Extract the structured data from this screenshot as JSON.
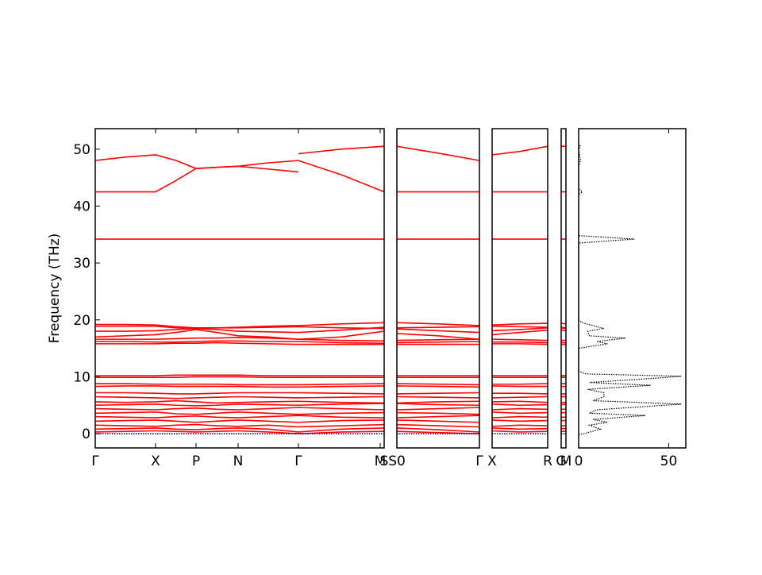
{
  "chart_data": [
    {
      "type": "line",
      "ylabel": "Frequency (THz)",
      "color": "#ff0000",
      "ylim": [
        -2.5,
        53.6
      ],
      "yticks": [
        0,
        10,
        20,
        30,
        40,
        50
      ],
      "xlim": [
        0,
        3.64
      ],
      "xticks": [
        {
          "value": 0,
          "label": "Γ"
        },
        {
          "value": 0.76,
          "label": "X"
        },
        {
          "value": 1.27,
          "label": "P"
        },
        {
          "value": 1.8,
          "label": "N"
        },
        {
          "value": 2.56,
          "label": "Γ"
        },
        {
          "value": 3.59,
          "label": "M"
        },
        {
          "value": 3.64,
          "label": "S"
        }
      ],
      "x": [
        0,
        0.38,
        0.76,
        1.02,
        1.27,
        1.53,
        1.8,
        2.18,
        2.56,
        3.1,
        3.64
      ],
      "series": [
        {
          "values": [
            48,
            48.6,
            49,
            48,
            46.6,
            46.8,
            47,
            47.6,
            48,
            45.5,
            42.5
          ]
        },
        {
          "values": [
            42.5,
            42.5,
            42.5,
            44.5,
            46.6,
            46.8,
            47,
            46.5,
            46,
            null,
            null
          ]
        },
        {
          "values": [
            null,
            null,
            null,
            null,
            null,
            null,
            null,
            null,
            49.2,
            50,
            50.5
          ]
        },
        {
          "values": [
            34.2,
            34.2,
            34.2,
            34.2,
            34.2,
            34.2,
            34.2,
            34.2,
            34.2,
            34.2,
            34.2
          ]
        },
        {
          "values": [
            19.2,
            19.2,
            19.1,
            18.8,
            18.6,
            18.6,
            18.7,
            18.9,
            19.0,
            19.3,
            19.5
          ]
        },
        {
          "values": [
            18.9,
            18.9,
            18.9,
            18.6,
            18.5,
            18.6,
            18.6,
            18.7,
            18.8,
            18.6,
            18.5
          ]
        },
        {
          "values": [
            18.0,
            18.0,
            18.1,
            18.3,
            18.5,
            18.3,
            18.0,
            17.9,
            17.8,
            18.2,
            18.7
          ]
        },
        {
          "values": [
            17.0,
            17.2,
            17.4,
            17.8,
            18.3,
            17.8,
            17.2,
            17.0,
            16.6,
            17.0,
            18.0
          ]
        },
        {
          "values": [
            16.6,
            16.6,
            16.6,
            16.7,
            16.8,
            16.8,
            16.9,
            16.8,
            16.6,
            16.4,
            16.3
          ]
        },
        {
          "values": [
            16.2,
            16.2,
            16.1,
            16.1,
            16.2,
            16.3,
            16.3,
            16.2,
            16.2,
            16.0,
            15.9
          ]
        },
        {
          "values": [
            15.8,
            15.8,
            15.8,
            15.9,
            15.9,
            16.0,
            15.9,
            15.8,
            15.7,
            15.7,
            15.7
          ]
        },
        {
          "values": [
            10.2,
            10.2,
            10.2,
            10.3,
            10.3,
            10.3,
            10.3,
            10.2,
            10.2,
            10.2,
            10.2
          ]
        },
        {
          "values": [
            9.9,
            9.9,
            9.9,
            9.9,
            10.0,
            10.0,
            10.0,
            9.9,
            9.9,
            9.9,
            9.9
          ]
        },
        {
          "values": [
            8.8,
            8.8,
            8.7,
            8.7,
            8.7,
            8.7,
            8.6,
            8.6,
            8.6,
            8.7,
            8.8
          ]
        },
        {
          "values": [
            8.3,
            8.4,
            8.4,
            8.3,
            8.3,
            8.3,
            8.3,
            8.2,
            8.2,
            8.3,
            8.4
          ]
        },
        {
          "values": [
            7.2,
            7.2,
            7.1,
            7.0,
            7.0,
            7.1,
            7.2,
            7.2,
            7.2,
            7.1,
            7.0
          ]
        },
        {
          "values": [
            6.5,
            6.4,
            6.3,
            6.2,
            6.3,
            6.4,
            6.5,
            6.4,
            6.3,
            6.4,
            6.5
          ]
        },
        {
          "values": [
            5.6,
            5.5,
            5.6,
            5.8,
            5.6,
            5.4,
            5.5,
            5.6,
            5.7,
            5.5,
            5.4
          ]
        },
        {
          "values": [
            5.0,
            5.1,
            5.2,
            5.0,
            4.9,
            5.0,
            5.2,
            5.1,
            5.0,
            5.2,
            5.3
          ]
        },
        {
          "values": [
            4.4,
            4.3,
            4.2,
            4.4,
            4.5,
            4.3,
            4.2,
            4.4,
            4.6,
            4.4,
            4.2
          ]
        },
        {
          "values": [
            3.6,
            3.7,
            3.8,
            3.5,
            3.4,
            3.6,
            3.8,
            3.6,
            3.4,
            3.6,
            3.7
          ]
        },
        {
          "values": [
            3.0,
            2.9,
            2.8,
            3.0,
            3.1,
            2.9,
            2.8,
            3.0,
            3.2,
            2.9,
            2.8
          ]
        },
        {
          "values": [
            2.2,
            2.3,
            2.4,
            2.2,
            2.0,
            2.2,
            2.4,
            2.2,
            2.0,
            2.3,
            2.4
          ]
        },
        {
          "values": [
            1.5,
            1.4,
            1.3,
            1.5,
            1.6,
            1.4,
            1.3,
            1.5,
            1.2,
            1.4,
            1.6
          ]
        },
        {
          "values": [
            0.8,
            0.9,
            1.0,
            0.8,
            0.7,
            0.9,
            1.0,
            0.8,
            0.3,
            0.8,
            1.0
          ]
        },
        {
          "values": [
            0.3,
            0.4,
            0.5,
            0.4,
            0.3,
            0.4,
            0.5,
            0.3,
            0.0,
            0.3,
            0.4
          ]
        },
        {
          "values": [
            0,
            0,
            0,
            0,
            0,
            0,
            0,
            0,
            0,
            0,
            0
          ],
          "color": "#0000cc"
        }
      ]
    },
    {
      "type": "line",
      "color": "#ff0000",
      "ylim": [
        -2.5,
        53.6
      ],
      "xlim": [
        0,
        1.04
      ],
      "xticks": [
        {
          "value": 0,
          "label": "S0"
        },
        {
          "value": 1.04,
          "label": "Γ"
        }
      ],
      "x": [
        0,
        0.52,
        1.04
      ],
      "series": [
        {
          "values": [
            50.5,
            49.3,
            48.0
          ]
        },
        {
          "values": [
            42.5,
            42.5,
            42.5
          ]
        },
        {
          "values": [
            34.2,
            34.2,
            34.2
          ]
        },
        {
          "values": [
            19.5,
            19.3,
            19.0
          ]
        },
        {
          "values": [
            18.6,
            18.7,
            18.8
          ]
        },
        {
          "values": [
            18.4,
            18.1,
            17.8
          ]
        },
        {
          "values": [
            17.6,
            17.2,
            16.6
          ]
        },
        {
          "values": [
            16.4,
            16.5,
            16.6
          ]
        },
        {
          "values": [
            16.0,
            16.1,
            16.2
          ]
        },
        {
          "values": [
            15.7,
            15.7,
            15.7
          ]
        },
        {
          "values": [
            10.2,
            10.2,
            10.2
          ]
        },
        {
          "values": [
            9.9,
            9.9,
            9.9
          ]
        },
        {
          "values": [
            8.8,
            8.7,
            8.6
          ]
        },
        {
          "values": [
            8.4,
            8.3,
            8.2
          ]
        },
        {
          "values": [
            7.0,
            7.1,
            7.2
          ]
        },
        {
          "values": [
            6.5,
            6.4,
            6.3
          ]
        },
        {
          "values": [
            5.4,
            5.6,
            5.7
          ]
        },
        {
          "values": [
            5.3,
            5.1,
            5.0
          ]
        },
        {
          "values": [
            4.2,
            4.4,
            4.6
          ]
        },
        {
          "values": [
            3.7,
            3.6,
            3.4
          ]
        },
        {
          "values": [
            2.8,
            3.0,
            3.2
          ]
        },
        {
          "values": [
            2.4,
            2.2,
            2.0
          ]
        },
        {
          "values": [
            1.6,
            1.4,
            1.2
          ]
        },
        {
          "values": [
            1.0,
            0.7,
            0.3
          ]
        },
        {
          "values": [
            0.4,
            0.2,
            0.0
          ]
        },
        {
          "values": [
            0,
            0,
            0
          ],
          "color": "#0000cc"
        }
      ]
    },
    {
      "type": "line",
      "color": "#ff0000",
      "ylim": [
        -2.5,
        53.6
      ],
      "xlim": [
        0,
        0.7
      ],
      "xticks": [
        {
          "value": 0,
          "label": "X"
        },
        {
          "value": 0.7,
          "label": "R"
        }
      ],
      "x": [
        0,
        0.35,
        0.7
      ],
      "series": [
        {
          "values": [
            49.0,
            49.6,
            50.5
          ]
        },
        {
          "values": [
            42.5,
            42.5,
            42.5
          ]
        },
        {
          "values": [
            34.2,
            34.2,
            34.2
          ]
        },
        {
          "values": [
            19.1,
            19.3,
            19.4
          ]
        },
        {
          "values": [
            18.9,
            18.8,
            18.7
          ]
        },
        {
          "values": [
            18.1,
            18.3,
            18.6
          ]
        },
        {
          "values": [
            17.4,
            17.8,
            18.2
          ]
        },
        {
          "values": [
            16.6,
            16.5,
            16.4
          ]
        },
        {
          "values": [
            16.1,
            16.1,
            16.0
          ]
        },
        {
          "values": [
            15.8,
            15.8,
            15.7
          ]
        },
        {
          "values": [
            10.2,
            10.2,
            10.2
          ]
        },
        {
          "values": [
            9.9,
            9.9,
            9.9
          ]
        },
        {
          "values": [
            8.7,
            8.7,
            8.8
          ]
        },
        {
          "values": [
            8.4,
            8.3,
            8.3
          ]
        },
        {
          "values": [
            7.1,
            7.1,
            7.0
          ]
        },
        {
          "values": [
            6.3,
            6.4,
            6.5
          ]
        },
        {
          "values": [
            5.6,
            5.7,
            5.5
          ]
        },
        {
          "values": [
            5.2,
            5.0,
            5.1
          ]
        },
        {
          "values": [
            4.2,
            4.4,
            4.3
          ]
        },
        {
          "values": [
            3.8,
            3.6,
            3.7
          ]
        },
        {
          "values": [
            2.8,
            3.0,
            2.9
          ]
        },
        {
          "values": [
            2.4,
            2.2,
            2.3
          ]
        },
        {
          "values": [
            1.3,
            1.5,
            1.4
          ]
        },
        {
          "values": [
            1.0,
            0.8,
            0.9
          ]
        },
        {
          "values": [
            0.5,
            0.3,
            0.4
          ]
        },
        {
          "values": [
            0,
            0,
            0
          ],
          "color": "#0000cc"
        }
      ]
    },
    {
      "type": "line",
      "color": "#ff0000",
      "ylim": [
        -2.5,
        53.6
      ],
      "xlim": [
        0,
        0.06
      ],
      "xticks": [
        {
          "value": 0,
          "label": "G"
        },
        {
          "value": 0.06,
          "label": "M"
        }
      ],
      "x": [
        0,
        0.06
      ],
      "series": [
        {
          "values": [
            50.5,
            50.5
          ]
        },
        {
          "values": [
            42.5,
            42.5
          ]
        },
        {
          "values": [
            34.2,
            34.2
          ]
        },
        {
          "values": [
            19.4,
            19.3
          ]
        },
        {
          "values": [
            18.7,
            18.6
          ]
        },
        {
          "values": [
            18.6,
            18.5
          ]
        },
        {
          "values": [
            18.2,
            18.1
          ]
        },
        {
          "values": [
            16.4,
            16.4
          ]
        },
        {
          "values": [
            16.0,
            16.0
          ]
        },
        {
          "values": [
            15.7,
            15.7
          ]
        },
        {
          "values": [
            10.2,
            10.2
          ]
        },
        {
          "values": [
            9.9,
            9.9
          ]
        },
        {
          "values": [
            8.8,
            8.8
          ]
        },
        {
          "values": [
            8.3,
            8.3
          ]
        },
        {
          "values": [
            7.0,
            7.0
          ]
        },
        {
          "values": [
            6.5,
            6.5
          ]
        },
        {
          "values": [
            5.5,
            5.5
          ]
        },
        {
          "values": [
            5.1,
            5.2
          ]
        },
        {
          "values": [
            4.3,
            4.3
          ]
        },
        {
          "values": [
            3.7,
            3.7
          ]
        },
        {
          "values": [
            2.9,
            2.9
          ]
        },
        {
          "values": [
            2.3,
            2.3
          ]
        },
        {
          "values": [
            1.4,
            1.4
          ]
        },
        {
          "values": [
            0.9,
            0.9
          ]
        },
        {
          "values": [
            0.4,
            0.4
          ]
        },
        {
          "values": [
            0,
            0
          ],
          "color": "#0000cc"
        }
      ]
    },
    {
      "type": "dos",
      "color": "#000000",
      "ylim": [
        -2.5,
        53.6
      ],
      "xlim": [
        0,
        59.5
      ],
      "xticks": [
        0,
        50
      ],
      "frequencies": [
        -0.2,
        0,
        0.8,
        1.5,
        2,
        2.5,
        3.2,
        3.6,
        4.2,
        5.2,
        5.8,
        6.5,
        7.2,
        7.8,
        8.5,
        9,
        9.8,
        10.1,
        10.5,
        11,
        15,
        15.8,
        16.2,
        16.8,
        17.2,
        18,
        18.5,
        19,
        19.5,
        20,
        33.5,
        34.2,
        34.8,
        42,
        42.5,
        43,
        47,
        48,
        50,
        50.5,
        51
      ],
      "values": [
        0,
        3,
        12,
        6,
        16,
        8,
        37,
        6,
        10,
        57,
        8,
        14,
        14,
        5,
        40,
        6,
        45,
        57,
        4,
        0,
        0,
        16,
        10,
        26,
        6,
        5,
        14,
        8,
        2,
        0,
        0,
        31,
        0,
        0,
        2,
        0,
        0,
        1,
        0,
        1,
        0
      ]
    }
  ]
}
